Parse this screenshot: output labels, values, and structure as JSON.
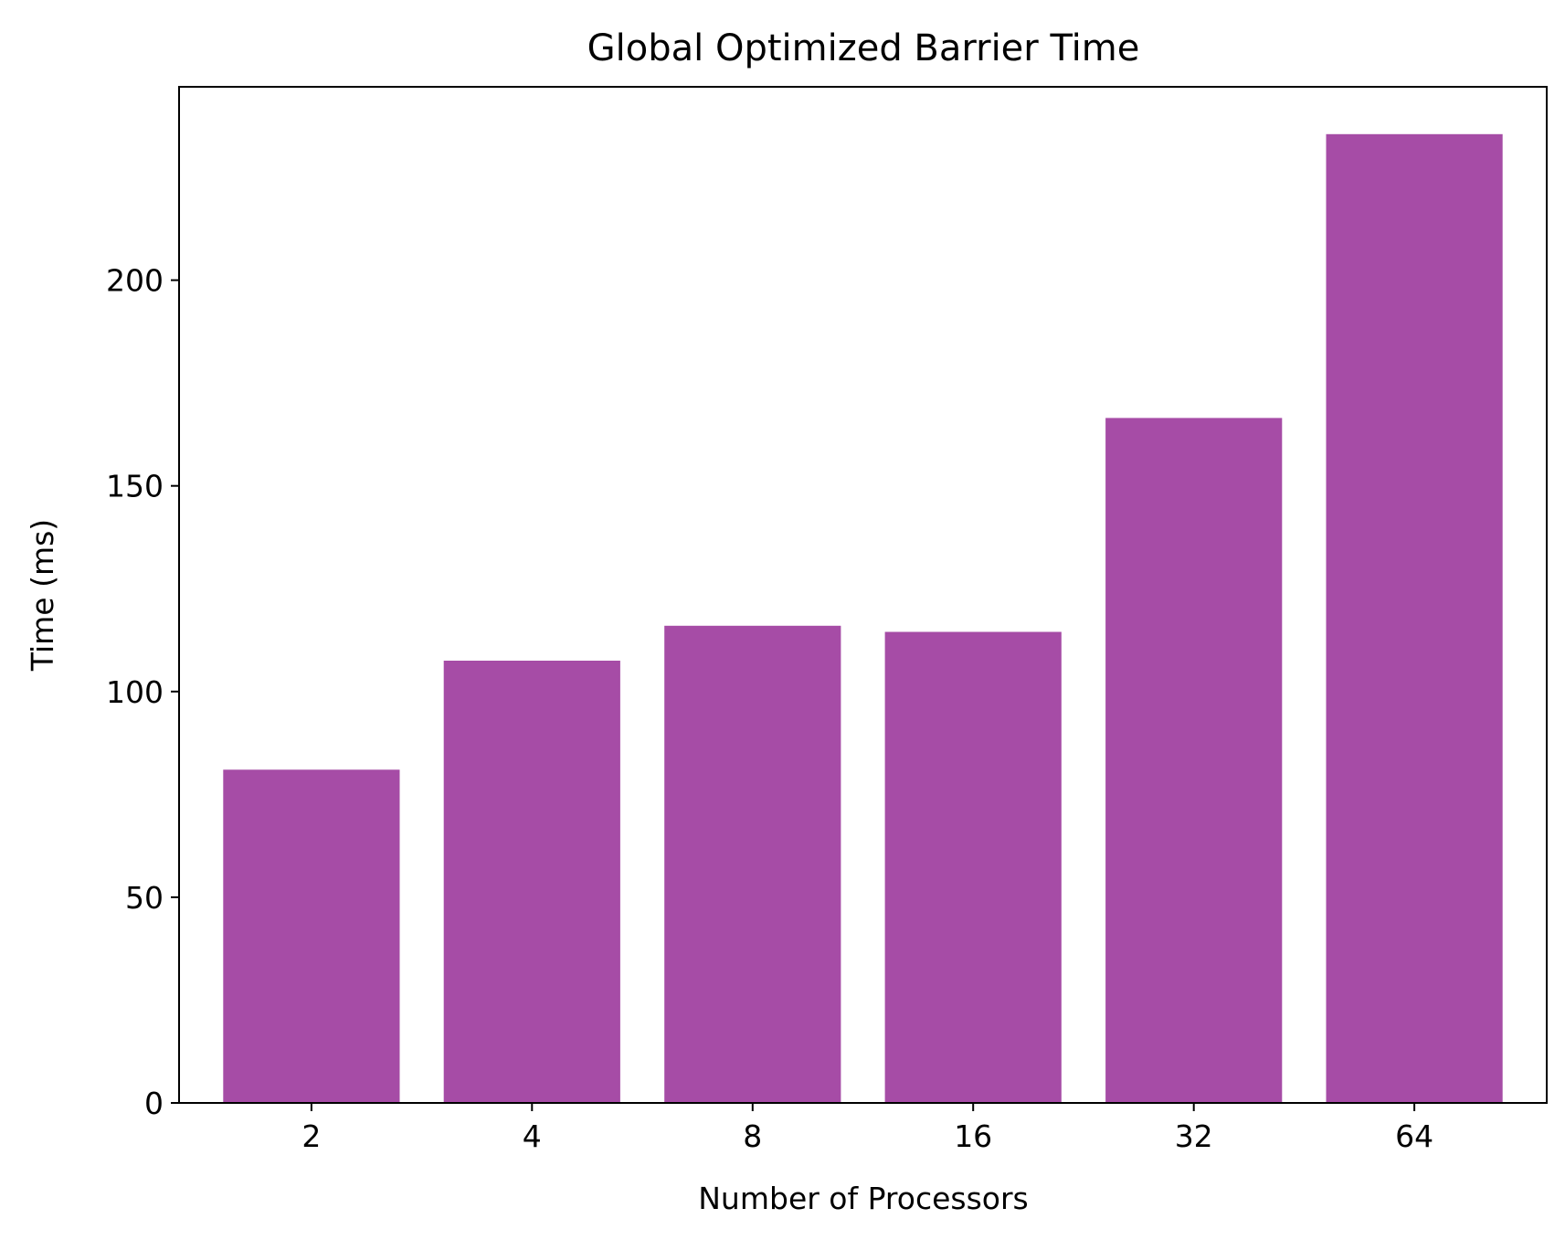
{
  "chart_data": {
    "type": "bar",
    "title": "Global Optimized Barrier Time",
    "xlabel": "Number of Processors",
    "ylabel": "Time (ms)",
    "categories": [
      "2",
      "4",
      "8",
      "16",
      "32",
      "64"
    ],
    "values": [
      81,
      107.5,
      116,
      114.5,
      166.5,
      235.5
    ],
    "ylim": [
      0,
      247
    ],
    "yticks": [
      0,
      50,
      100,
      150,
      200
    ],
    "bar_color": "#a64ca6",
    "grid": false,
    "legend": "none"
  }
}
